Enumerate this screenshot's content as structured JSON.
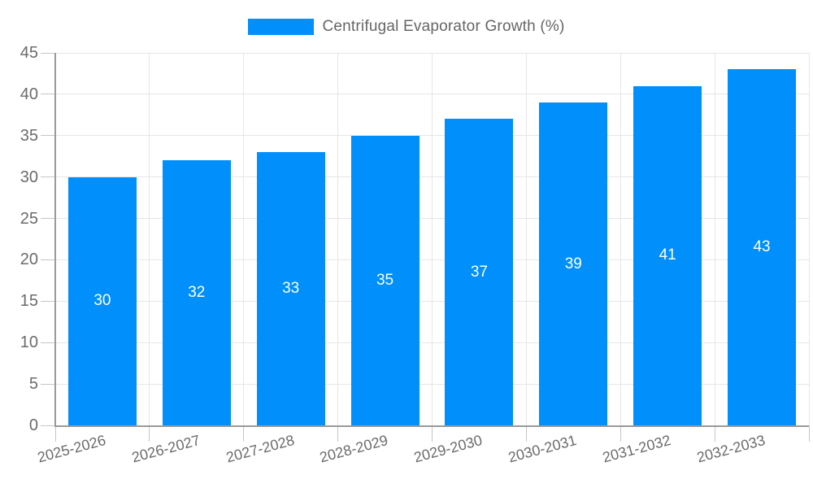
{
  "chart_data": {
    "type": "bar",
    "title": "Centrifugal Evaporator Growth (%)",
    "categories": [
      "2025-2026",
      "2026-2027",
      "2027-2028",
      "2028-2029",
      "2029-2030",
      "2030-2031",
      "2031-2032",
      "2032-2033"
    ],
    "values": [
      30,
      32,
      33,
      35,
      37,
      39,
      41,
      43
    ],
    "bar_labels": [
      "30",
      "32",
      "33",
      "35",
      "37",
      "39",
      "41",
      "43"
    ],
    "ylim": [
      0,
      45
    ],
    "yticks": [
      0,
      5,
      10,
      15,
      20,
      25,
      30,
      35,
      40,
      45
    ],
    "xlabel": "",
    "ylabel": "",
    "grid": true,
    "legend_position": "top",
    "colors": {
      "bar": "#008ffb",
      "bar_value_text": "#ffffff",
      "legend_text": "#666666",
      "axis_text": "#6b6b6b",
      "gridline": "#e6e6e6",
      "axis_line": "#9a9a9a",
      "tick": "#c6c6c6"
    }
  },
  "legend": {
    "label": "Centrifugal Evaporator Growth (%)"
  }
}
